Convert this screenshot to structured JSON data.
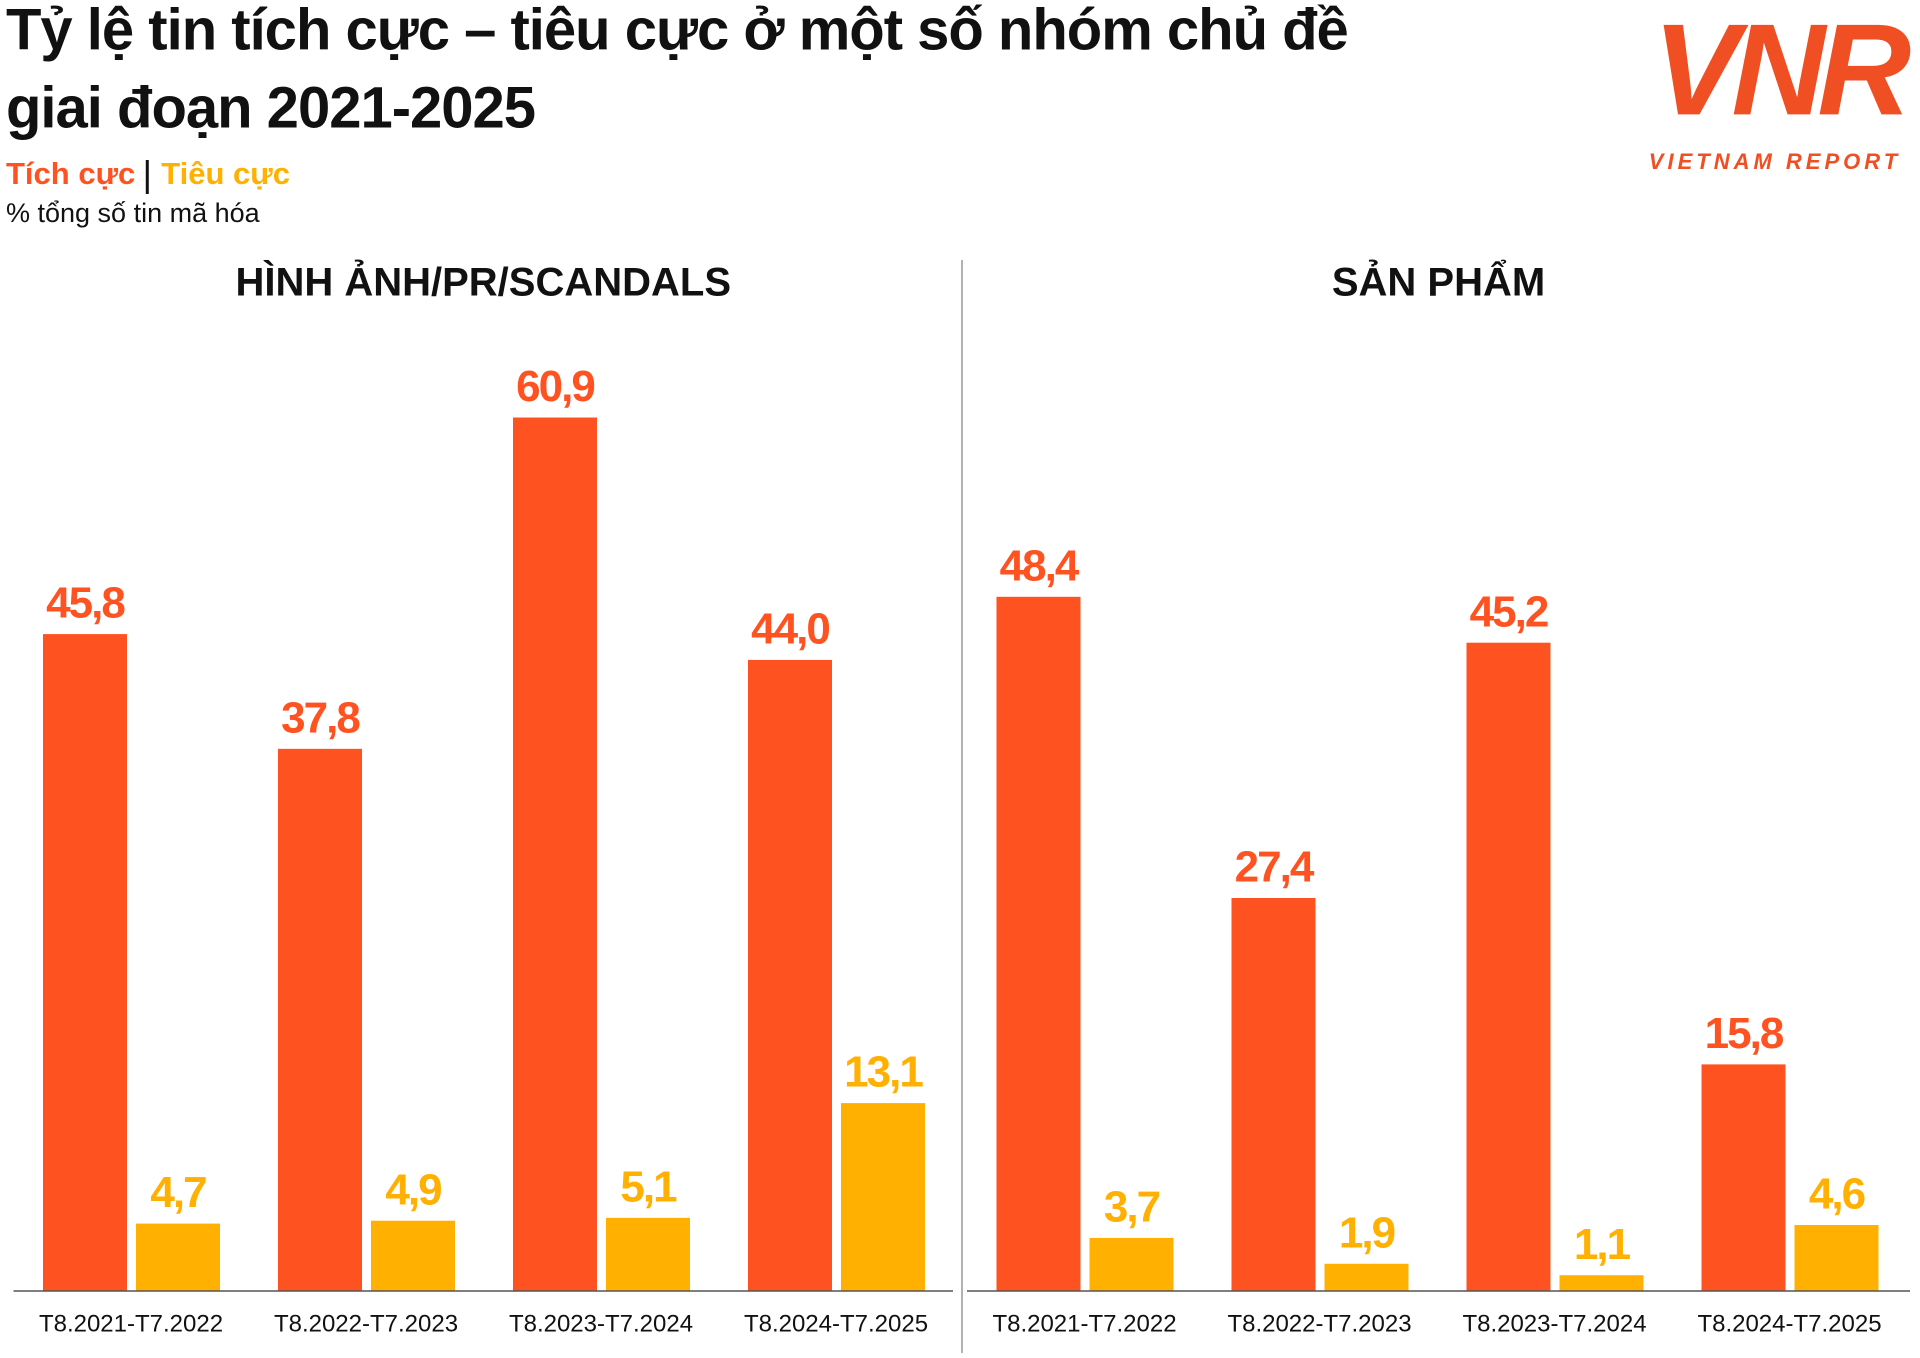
{
  "header": {
    "title_lines": [
      "Tỷ lệ tin tích cực – tiêu cực ở một số nhóm chủ đề",
      "giai đoạn 2021-2025"
    ],
    "subtitle": "% tổng số tin mã hóa",
    "logo": {
      "mark": "VNR",
      "text": "VIETNAM REPORT"
    }
  },
  "chart_data": [
    {
      "type": "bar",
      "title": "HÌNH ẢNH/PR/SCANDALS",
      "categories": [
        "T8.2021-T7.2022",
        "T8.2022-T7.2023",
        "T8.2023-T7.2024",
        "T8.2024-T7.2025"
      ],
      "series": [
        {
          "name": "Tích cực",
          "color": "#ff5221",
          "values": [
            45.8,
            37.8,
            60.9,
            44.0
          ],
          "value_labels": [
            "45,8",
            "37,8",
            "60,9",
            "44,0"
          ]
        },
        {
          "name": "Tiêu cực",
          "color": "#ffb000",
          "values": [
            4.7,
            4.9,
            5.1,
            13.1
          ],
          "value_labels": [
            "4,7",
            "4,9",
            "5,1",
            "13,1"
          ]
        }
      ],
      "ylim": [
        0,
        70
      ]
    },
    {
      "type": "bar",
      "title": "SẢN PHẨM",
      "categories": [
        "T8.2021-T7.2022",
        "T8.2022-T7.2023",
        "T8.2023-T7.2024",
        "T8.2024-T7.2025"
      ],
      "series": [
        {
          "color": "#ff5221",
          "values": [
            48.4,
            27.4,
            45.2,
            15.8
          ],
          "value_labels": [
            "48,4",
            "27,4",
            "45,2",
            "15,8"
          ]
        },
        {
          "color": "#ffb000",
          "values": [
            3.7,
            1.9,
            1.1,
            4.6
          ],
          "value_labels": [
            "3,7",
            "1,9",
            "1,1",
            "4,6"
          ]
        }
      ],
      "ylim": [
        0,
        70
      ]
    }
  ]
}
